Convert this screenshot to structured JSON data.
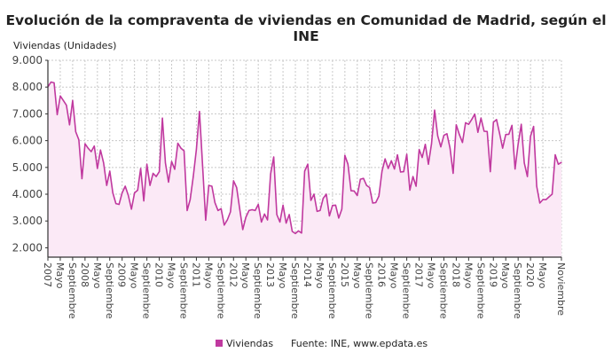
{
  "chart_data": {
    "type": "area",
    "title": "Evolución de la compraventa de viviendas en Comunidad de Madrid, según el INE",
    "ylabel": "Viviendas (Unidades)",
    "xlabel": "",
    "ylim": [
      1650,
      9000
    ],
    "yticks": [
      2000,
      3000,
      4000,
      5000,
      6000,
      7000,
      8000,
      9000
    ],
    "ytick_labels": [
      "2.000",
      "3.000",
      "4.000",
      "5.000",
      "6.000",
      "7.000",
      "8.000",
      "9.000"
    ],
    "x_start": "2007-01",
    "x_end": "2020-11",
    "x_frequency": "monthly",
    "xtick_labels": [
      "2007",
      "Mayo",
      "Septiembre",
      "2008",
      "Mayo",
      "Septiembre",
      "2009",
      "Mayo",
      "Septiembre",
      "2010",
      "Mayo",
      "Septiembre",
      "2011",
      "Mayo",
      "Septiembre",
      "2012",
      "Mayo",
      "Septiembre",
      "2013",
      "Mayo",
      "Septiembre",
      "2014",
      "Mayo",
      "Septiembre",
      "2015",
      "Mayo",
      "Septiembre",
      "2016",
      "Mayo",
      "Septiembre",
      "2017",
      "Mayo",
      "Septiembre",
      "2018",
      "Mayo",
      "Septiembre",
      "2019",
      "Mayo",
      "Septiembre",
      "2020",
      "Mayo",
      "Noviembre"
    ],
    "grid": true,
    "legend_position": "bottom",
    "source": "Fuente: INE, www.epdata.es",
    "series": [
      {
        "name": "Viviendas",
        "color": "#c0399f",
        "fill": "#fbe9f6",
        "values": [
          8010,
          8190,
          8160,
          6970,
          7670,
          7500,
          7320,
          6590,
          7500,
          6330,
          6030,
          4580,
          5880,
          5720,
          5590,
          5800,
          4960,
          5650,
          5170,
          4330,
          4860,
          4050,
          3650,
          3620,
          4050,
          4300,
          3950,
          3440,
          4050,
          4150,
          4960,
          3750,
          5120,
          4330,
          4780,
          4660,
          4840,
          6840,
          5170,
          4450,
          5220,
          4930,
          5900,
          5720,
          5620,
          3390,
          3800,
          4660,
          5670,
          7090,
          5070,
          3030,
          4330,
          4300,
          3690,
          3390,
          3460,
          2850,
          3040,
          3340,
          4500,
          4250,
          3440,
          2680,
          3140,
          3390,
          3420,
          3390,
          3620,
          2960,
          3260,
          3040,
          4760,
          5390,
          3240,
          2960,
          3590,
          2920,
          3240,
          2610,
          2530,
          2630,
          2550,
          4860,
          5120,
          3770,
          4000,
          3360,
          3390,
          3850,
          4000,
          3190,
          3580,
          3590,
          3110,
          3440,
          5450,
          5120,
          4130,
          4120,
          3950,
          4560,
          4590,
          4330,
          4250,
          3670,
          3690,
          3930,
          4860,
          5320,
          4960,
          5250,
          4940,
          5470,
          4830,
          4840,
          5490,
          4150,
          4660,
          4300,
          5670,
          5370,
          5860,
          5120,
          5880,
          7140,
          6180,
          5770,
          6200,
          6260,
          5720,
          4780,
          6590,
          6230,
          5930,
          6670,
          6610,
          6790,
          6990,
          6310,
          6840,
          6350,
          6340,
          4840,
          6690,
          6790,
          6280,
          5720,
          6230,
          6240,
          6570,
          4940,
          5880,
          6610,
          5170,
          4660,
          6160,
          6530,
          4300,
          3670,
          3800,
          3800,
          3900,
          4000,
          5470,
          5120,
          5190
        ]
      }
    ]
  }
}
